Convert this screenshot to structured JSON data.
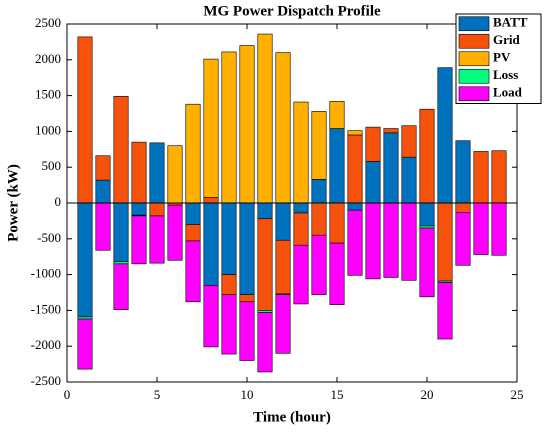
{
  "chart_data": {
    "type": "stacked_bar",
    "title": "MG Power Dispatch Profile",
    "xlabel": "Time (hour)",
    "ylabel": "Power (kW)",
    "x": [
      1,
      2,
      3,
      4,
      5,
      6,
      7,
      8,
      9,
      10,
      11,
      12,
      13,
      14,
      15,
      16,
      17,
      18,
      19,
      20,
      21,
      22,
      23,
      24
    ],
    "series": [
      {
        "name": "BATT",
        "color": "#0072BD",
        "values": [
          -1590,
          320,
          -820,
          -170,
          840,
          0,
          -300,
          -1150,
          -1000,
          -1280,
          -220,
          -520,
          -140,
          330,
          1040,
          -100,
          580,
          980,
          640,
          -320,
          1890,
          870,
          0,
          0
        ]
      },
      {
        "name": "Grid",
        "color": "#F5520E",
        "values": [
          2320,
          340,
          1490,
          850,
          -180,
          -30,
          -230,
          80,
          -280,
          -100,
          -1280,
          -750,
          -450,
          -450,
          -560,
          950,
          480,
          60,
          440,
          1310,
          -1090,
          -130,
          720,
          730
        ]
      },
      {
        "name": "PV",
        "color": "#FFB000",
        "values": [
          0,
          0,
          0,
          0,
          0,
          800,
          1380,
          1930,
          2110,
          2200,
          2360,
          2100,
          1410,
          950,
          380,
          60,
          0,
          0,
          0,
          0,
          0,
          0,
          0,
          0
        ]
      },
      {
        "name": "Loss",
        "color": "#00FF7F",
        "values": [
          -30,
          0,
          -30,
          -10,
          0,
          0,
          0,
          0,
          0,
          0,
          -30,
          -10,
          0,
          0,
          0,
          0,
          0,
          0,
          0,
          -30,
          -20,
          0,
          0,
          0
        ]
      },
      {
        "name": "Load",
        "color": "#FF00FF",
        "values": [
          -700,
          -660,
          -640,
          -670,
          -660,
          -770,
          -850,
          -860,
          -830,
          -820,
          -830,
          -820,
          -820,
          -830,
          -860,
          -910,
          -1060,
          -1040,
          -1080,
          -960,
          -790,
          -740,
          -720,
          -730
        ]
      }
    ],
    "xlim": [
      0,
      25
    ],
    "xticks": [
      0,
      5,
      10,
      15,
      20,
      25
    ],
    "ylim": [
      -2500,
      2500
    ],
    "yticks": [
      -2500,
      -2000,
      -1500,
      -1000,
      -500,
      0,
      500,
      1000,
      1500,
      2000,
      2500
    ],
    "grid": false,
    "legend": "upper right"
  }
}
